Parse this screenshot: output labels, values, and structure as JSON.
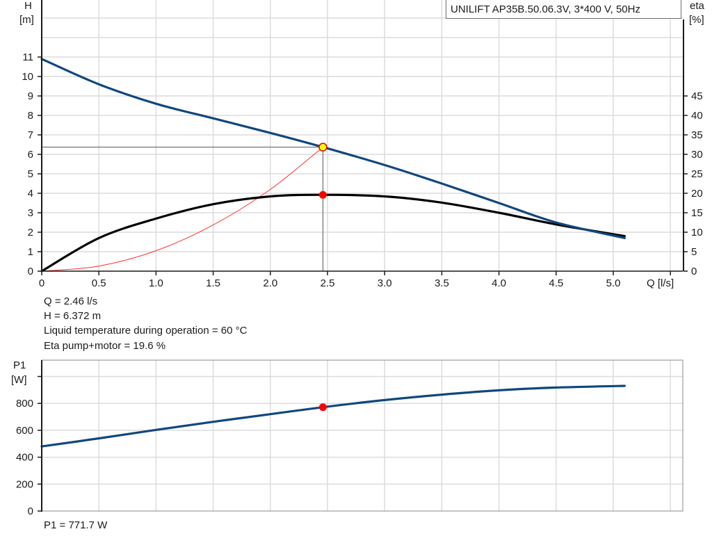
{
  "title": "UNILIFT AP35B.50.06.3V, 3*400 V, 50Hz",
  "colors": {
    "head_curve": "#10477f",
    "eta_curve": "#000000",
    "system_curve": "#ff3030",
    "power_curve": "#10477f",
    "duty_point_fill": "#ffff00",
    "duty_point_stroke": "#e00000",
    "marker_red": "#ff0000",
    "grid": "#dcdcdc",
    "axis": "#1a1a1a"
  },
  "top_chart": {
    "y_left_label_line1": "H",
    "y_left_label_line2": "[m]",
    "y_right_label_line1": "eta",
    "y_right_label_line2": "[%]",
    "x_label": "Q [l/s]"
  },
  "bottom_chart": {
    "y_label_line1": "P1",
    "y_label_line2": "[W]"
  },
  "info": {
    "q": "Q = 2.46 l/s",
    "h": "H = 6.372 m",
    "temp": "Liquid temperature during operation = 60 °C",
    "eta": "Eta pump+motor = 19.6 %",
    "p1": "P1 = 771.7 W"
  },
  "chart_data": [
    {
      "type": "line",
      "title": "UNILIFT AP35B.50.06.3V, 3*400 V, 50Hz",
      "xlabel": "Q [l/s]",
      "ylabel": "H [m]",
      "y2label": "eta [%]",
      "x_ticks": [
        "0",
        "0.5",
        "1.0",
        "1.5",
        "2.0",
        "2.5",
        "3.0",
        "3.5",
        "4.0",
        "4.5",
        "5.0"
      ],
      "y_ticks": [
        "0",
        "1",
        "2",
        "3",
        "4",
        "5",
        "6",
        "7",
        "8",
        "9",
        "10",
        "11"
      ],
      "y2_ticks": [
        "0",
        "5",
        "10",
        "15",
        "20",
        "25",
        "30",
        "35",
        "40",
        "45"
      ],
      "xlim": [
        0,
        5.5
      ],
      "ylim": [
        0,
        13
      ],
      "y2lim": [
        0,
        65
      ],
      "grid": true,
      "series": [
        {
          "name": "H (head)",
          "axis": "left",
          "x": [
            0,
            0.5,
            1.0,
            1.5,
            2.0,
            2.46,
            3.0,
            3.5,
            4.0,
            4.5,
            5.1
          ],
          "values": [
            10.9,
            9.6,
            8.6,
            7.85,
            7.1,
            6.372,
            5.45,
            4.5,
            3.5,
            2.5,
            1.7
          ]
        },
        {
          "name": "Eta pump+motor",
          "axis": "right",
          "x": [
            0,
            0.5,
            1.0,
            1.5,
            2.0,
            2.46,
            3.0,
            3.5,
            4.0,
            4.5,
            5.1
          ],
          "values": [
            0,
            8.5,
            13.5,
            17.2,
            19.2,
            19.6,
            19.2,
            17.6,
            15.0,
            12.0,
            9.0
          ]
        },
        {
          "name": "System curve",
          "axis": "left",
          "x": [
            0,
            0.5,
            1.0,
            1.5,
            2.0,
            2.46
          ],
          "values": [
            0,
            0.26,
            1.05,
            2.37,
            4.2,
            6.372
          ]
        }
      ],
      "annotations": [
        {
          "name": "duty point",
          "x": 2.46,
          "y": 6.372
        },
        {
          "name": "eta at duty point",
          "x": 2.46,
          "y2": 19.6
        }
      ]
    },
    {
      "type": "line",
      "xlabel": "",
      "ylabel": "P1 [W]",
      "x_ticks": [],
      "y_ticks": [
        "0",
        "200",
        "400",
        "600",
        "800"
      ],
      "xlim": [
        0,
        5.5
      ],
      "ylim": [
        0,
        1000
      ],
      "grid": true,
      "series": [
        {
          "name": "P1",
          "x": [
            0,
            0.5,
            1.0,
            1.5,
            2.0,
            2.46,
            3.0,
            3.5,
            4.0,
            4.5,
            5.1
          ],
          "values": [
            480,
            540,
            603,
            663,
            720,
            771.7,
            825,
            865,
            897,
            918,
            930
          ]
        }
      ],
      "annotations": [
        {
          "name": "P1 at duty point",
          "x": 2.46,
          "y": 771.7
        }
      ]
    }
  ]
}
